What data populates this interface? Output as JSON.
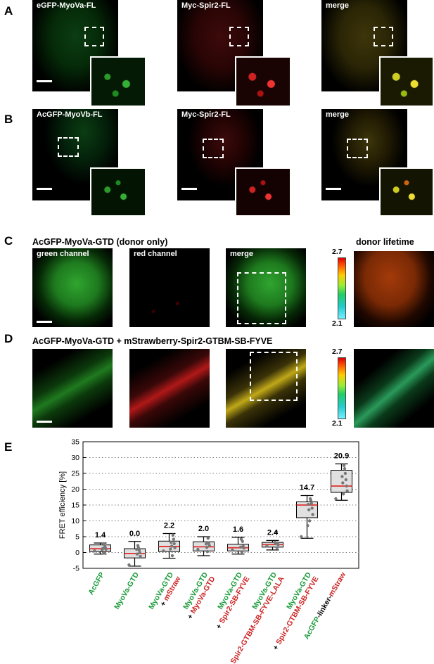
{
  "panels": {
    "A": "A",
    "B": "B",
    "C": "C",
    "D": "D",
    "E": "E"
  },
  "row_a": {
    "labels": [
      "eGFP-MyoVa-FL",
      "Myc-Spir2-FL",
      "merge"
    ]
  },
  "row_b": {
    "labels": [
      "AcGFP-MyoVb-FL",
      "Myc-Spir2-FL",
      "merge"
    ]
  },
  "row_c": {
    "title": "AcGFP-MyoVa-GTD (donor only)",
    "labels": [
      "green channel",
      "red channel",
      "merge"
    ],
    "lifetime_title": "donor lifetime",
    "cbar_max": "2.7",
    "cbar_min": "2.1"
  },
  "row_d": {
    "title": "AcGFP-MyoVa-GTD + mStrawberry-Spir2-GTBM-SB-FYVE",
    "cbar_max": "2.7",
    "cbar_min": "2.1"
  },
  "colors": {
    "green": "#1a9a3a",
    "red": "#cc2222",
    "median": "#e03030",
    "box": "#e0e0e0"
  },
  "chart_data": {
    "type": "box",
    "ylabel": "FRET efficiency [%]",
    "ylim": [
      -5,
      35
    ],
    "yticks": [
      "-5",
      "0",
      "5",
      "10",
      "15",
      "20",
      "25",
      "30",
      "35"
    ],
    "grid": "horizontal dotted",
    "categories": [
      {
        "lines": [
          {
            "parts": [
              {
                "t": "AcGFP",
                "c": "green"
              }
            ]
          }
        ]
      },
      {
        "lines": [
          {
            "parts": [
              {
                "t": "MyoVa-GTD",
                "c": "green"
              }
            ]
          }
        ]
      },
      {
        "lines": [
          {
            "parts": [
              {
                "t": "MyoVa-GTD",
                "c": "green"
              }
            ]
          },
          {
            "parts": [
              {
                "t": "+ ",
                "c": "black"
              },
              {
                "t": "mStraw",
                "c": "red"
              }
            ]
          }
        ]
      },
      {
        "lines": [
          {
            "parts": [
              {
                "t": "MyoVa-GTD",
                "c": "green"
              }
            ]
          },
          {
            "parts": [
              {
                "t": "+ ",
                "c": "black"
              },
              {
                "t": "MyoVa-GTD",
                "c": "red"
              }
            ]
          }
        ]
      },
      {
        "lines": [
          {
            "parts": [
              {
                "t": "MyoVa-GTD",
                "c": "green"
              }
            ]
          },
          {
            "parts": [
              {
                "t": "+ ",
                "c": "black"
              },
              {
                "t": "Spir2-SB-FYVE",
                "c": "red"
              }
            ]
          }
        ]
      },
      {
        "lines": [
          {
            "parts": [
              {
                "t": "MyoVa-GTD",
                "c": "green"
              }
            ]
          },
          {
            "parts": [
              {
                "t": "+ ",
                "c": "black"
              },
              {
                "t": "Spir2-GTBM-SB-FYVE-LALA",
                "c": "red"
              }
            ]
          }
        ]
      },
      {
        "lines": [
          {
            "parts": [
              {
                "t": "MyoVa-GTD",
                "c": "green"
              }
            ]
          },
          {
            "parts": [
              {
                "t": "+ ",
                "c": "black"
              },
              {
                "t": "Spir2-GTBM-SB-FYVE",
                "c": "red"
              }
            ]
          }
        ]
      },
      {
        "lines": [
          {
            "parts": [
              {
                "t": "AcGFP",
                "c": "green"
              },
              {
                "t": "-linker-",
                "c": "black"
              },
              {
                "t": "mStraw",
                "c": "red"
              }
            ]
          }
        ]
      }
    ],
    "means": [
      "1.4",
      "0.0",
      "2.2",
      "2.0",
      "1.6",
      "2.4",
      "14.7",
      "20.9"
    ],
    "boxes": [
      {
        "q1": 0.3,
        "median": 1.2,
        "q3": 2.4,
        "wlo": -0.5,
        "whi": 3.0,
        "pts": [
          0.5,
          1.0,
          1.6,
          2.2,
          -0.2,
          2.8,
          1.3,
          0.9
        ]
      },
      {
        "q1": -1.7,
        "median": -0.3,
        "q3": 1.2,
        "wlo": -4.3,
        "whi": 3.5,
        "pts": [
          -3.9,
          -1.2,
          0.0,
          0.8,
          1.5,
          2.2,
          -0.5,
          1.0
        ]
      },
      {
        "q1": 0.3,
        "median": 1.9,
        "q3": 3.6,
        "wlo": -1.8,
        "whi": 6.0,
        "pts": [
          0.5,
          1.5,
          2.8,
          4.2,
          5.5,
          -1.0,
          2.0,
          3.2,
          1.1
        ]
      },
      {
        "q1": 0.5,
        "median": 1.8,
        "q3": 3.4,
        "wlo": -1.0,
        "whi": 5.0,
        "pts": [
          1.0,
          2.2,
          3.0,
          4.5,
          0.3,
          1.6,
          2.7
        ]
      },
      {
        "q1": 0.5,
        "median": 1.5,
        "q3": 2.6,
        "wlo": -0.5,
        "whi": 4.8,
        "pts": [
          0.8,
          1.4,
          2.0,
          3.5,
          0.2,
          4.2,
          1.7
        ]
      },
      {
        "q1": 1.7,
        "median": 2.5,
        "q3": 3.2,
        "wlo": 0.8,
        "whi": 3.8,
        "pts": [
          2.0,
          2.5,
          3.0,
          1.5,
          6.5,
          2.8,
          3.2
        ]
      },
      {
        "q1": 11.0,
        "median": 15.0,
        "q3": 16.0,
        "wlo": 4.5,
        "whi": 18.0,
        "pts": [
          5.0,
          12.0,
          14.0,
          15.5,
          16.5,
          17.0,
          10.0,
          13.5,
          15.2,
          8.5
        ]
      },
      {
        "q1": 19.0,
        "median": 21.0,
        "q3": 26.0,
        "wlo": 16.5,
        "whi": 28.0,
        "pts": [
          17.0,
          19.5,
          21.0,
          23.0,
          25.0,
          26.5,
          27.5,
          18.5,
          22.0,
          24.0
        ]
      }
    ]
  }
}
